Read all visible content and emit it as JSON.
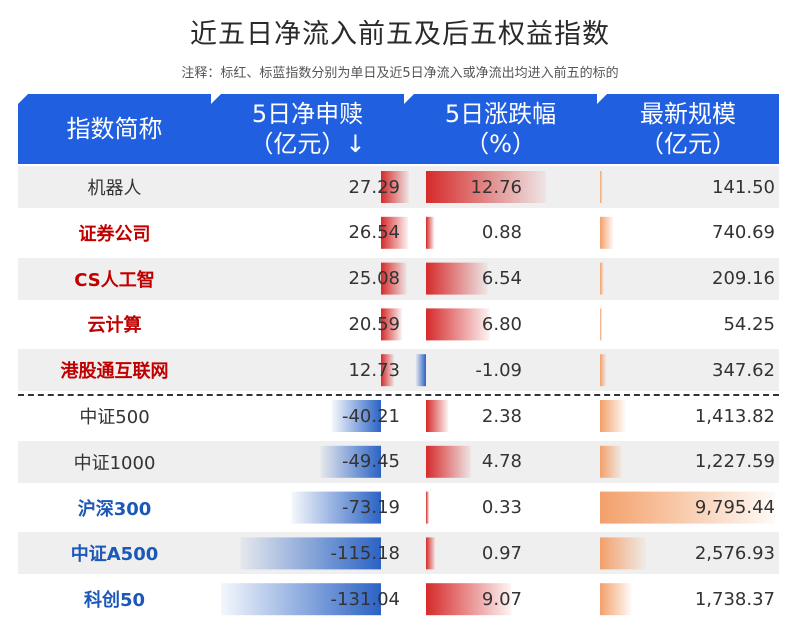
{
  "title": "近五日净流入前五及后五权益指数",
  "subtitle": "注释：标红、标蓝指数分别为单日及近5日净流入或净流出均进入前五的标的",
  "headers": {
    "name": "指数简称",
    "flow": "5日净申赎\n（亿元）↓",
    "change": "5日涨跌幅\n（%）",
    "scale": "最新规模\n（亿元）"
  },
  "colors": {
    "header": "#1f5fe0",
    "highlight_red": "#c00000",
    "highlight_blue": "#1b58b8",
    "bar_red": "#d62a2a",
    "bar_blue": "#2b63c4",
    "bar_orange": "#f3a06a"
  },
  "chart_data": {
    "type": "table",
    "columns": [
      "指数简称",
      "5日净申赎（亿元）",
      "5日涨跌幅（%）",
      "最新规模（亿元）"
    ],
    "rows": [
      {
        "name": "机器人",
        "flow": 27.29,
        "flow_text": "27.29",
        "change": 12.76,
        "change_text": "12.76",
        "scale": 141.5,
        "scale_text": "141.50",
        "highlight": "none"
      },
      {
        "name": "证券公司",
        "flow": 26.54,
        "flow_text": "26.54",
        "change": 0.88,
        "change_text": "0.88",
        "scale": 740.69,
        "scale_text": "740.69",
        "highlight": "red"
      },
      {
        "name": "CS人工智",
        "flow": 25.08,
        "flow_text": "25.08",
        "change": 6.54,
        "change_text": "6.54",
        "scale": 209.16,
        "scale_text": "209.16",
        "highlight": "red"
      },
      {
        "name": "云计算",
        "flow": 20.59,
        "flow_text": "20.59",
        "change": 6.8,
        "change_text": "6.80",
        "scale": 54.25,
        "scale_text": "54.25",
        "highlight": "red"
      },
      {
        "name": "港股通互联网",
        "flow": 12.73,
        "flow_text": "12.73",
        "change": -1.09,
        "change_text": "-1.09",
        "scale": 347.62,
        "scale_text": "347.62",
        "highlight": "red"
      },
      {
        "name": "中证500",
        "flow": -40.21,
        "flow_text": "-40.21",
        "change": 2.38,
        "change_text": "2.38",
        "scale": 1413.82,
        "scale_text": "1,413.82",
        "highlight": "none"
      },
      {
        "name": "中证1000",
        "flow": -49.45,
        "flow_text": "-49.45",
        "change": 4.78,
        "change_text": "4.78",
        "scale": 1227.59,
        "scale_text": "1,227.59",
        "highlight": "none"
      },
      {
        "name": "沪深300",
        "flow": -73.19,
        "flow_text": "-73.19",
        "change": 0.33,
        "change_text": "0.33",
        "scale": 9795.44,
        "scale_text": "9,795.44",
        "highlight": "blue"
      },
      {
        "name": "中证A500",
        "flow": -115.18,
        "flow_text": "-115.18",
        "change": 0.97,
        "change_text": "0.97",
        "scale": 2576.93,
        "scale_text": "2,576.93",
        "highlight": "blue"
      },
      {
        "name": "科创50",
        "flow": -131.04,
        "flow_text": "-131.04",
        "change": 9.07,
        "change_text": "9.07",
        "scale": 1738.37,
        "scale_text": "1,738.37",
        "highlight": "blue"
      }
    ]
  }
}
